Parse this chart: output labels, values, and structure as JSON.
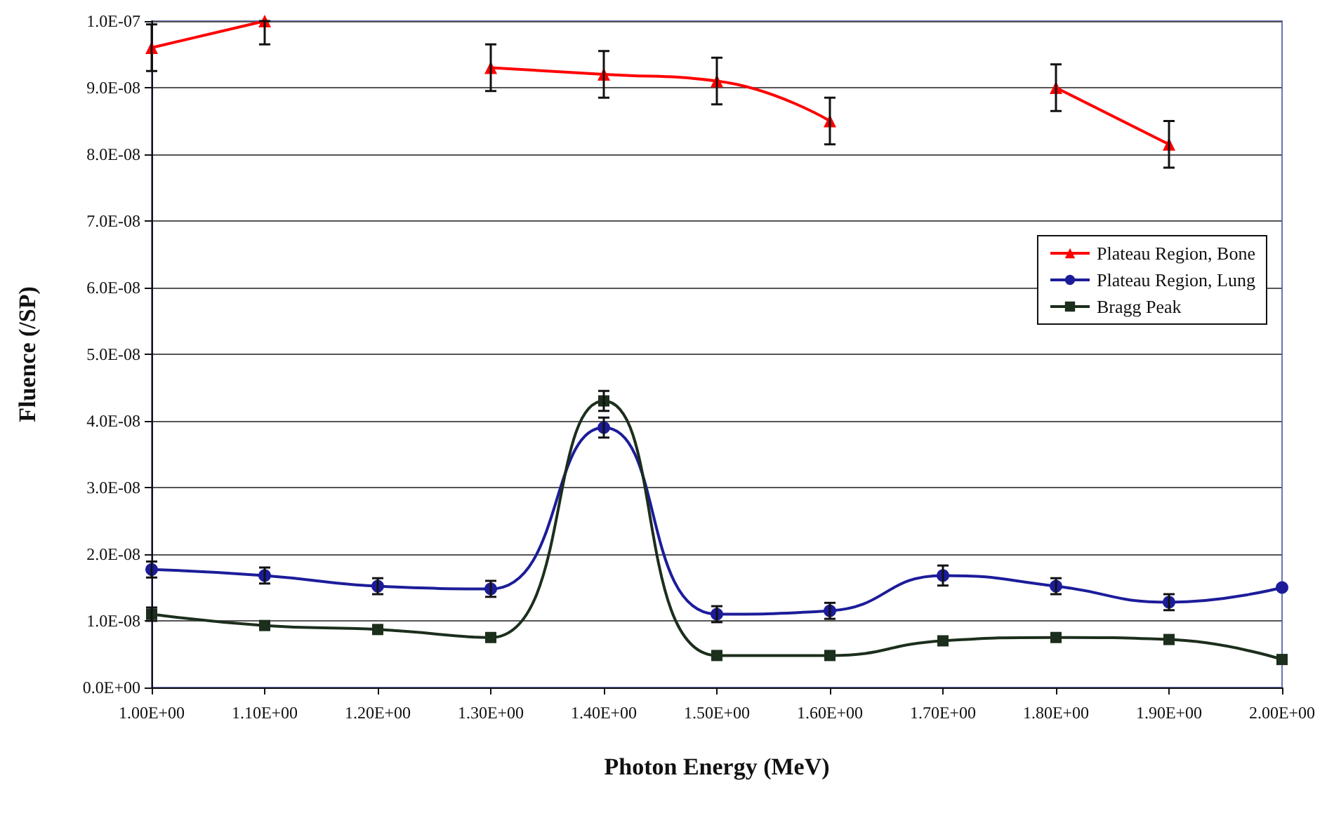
{
  "chart_data": {
    "type": "line",
    "xlabel": "Photon Energy (MeV)",
    "ylabel": "Fluence (/SP)",
    "x": [
      1.0,
      1.1,
      1.2,
      1.3,
      1.4,
      1.5,
      1.6,
      1.7,
      1.8,
      1.9,
      2.0
    ],
    "xlim": [
      1.0,
      2.0
    ],
    "xticks": [
      {
        "value": 1.0,
        "label": "1.00E+00"
      },
      {
        "value": 1.1,
        "label": "1.10E+00"
      },
      {
        "value": 1.2,
        "label": "1.20E+00"
      },
      {
        "value": 1.3,
        "label": "1.30E+00"
      },
      {
        "value": 1.4,
        "label": "1.40E+00"
      },
      {
        "value": 1.5,
        "label": "1.50E+00"
      },
      {
        "value": 1.6,
        "label": "1.60E+00"
      },
      {
        "value": 1.7,
        "label": "1.70E+00"
      },
      {
        "value": 1.8,
        "label": "1.80E+00"
      },
      {
        "value": 1.9,
        "label": "1.90E+00"
      },
      {
        "value": 2.0,
        "label": "2.00E+00"
      }
    ],
    "ylim": [
      0,
      1e-07
    ],
    "yticks": [
      {
        "value": 0,
        "label": "0.0E+00"
      },
      {
        "value": 1e-08,
        "label": "1.0E-08"
      },
      {
        "value": 2e-08,
        "label": "2.0E-08"
      },
      {
        "value": 3e-08,
        "label": "3.0E-08"
      },
      {
        "value": 4e-08,
        "label": "4.0E-08"
      },
      {
        "value": 5e-08,
        "label": "5.0E-08"
      },
      {
        "value": 6e-08,
        "label": "6.0E-08"
      },
      {
        "value": 7e-08,
        "label": "7.0E-08"
      },
      {
        "value": 8e-08,
        "label": "8.0E-08"
      },
      {
        "value": 9e-08,
        "label": "9.0E-08"
      },
      {
        "value": 1e-07,
        "label": "1.0E-07"
      }
    ],
    "grid": "y",
    "legend": "right",
    "series": [
      {
        "name": "Plateau Region, Bone",
        "color": "#ff0000",
        "marker": "triangle",
        "values": [
          9.6e-08,
          1e-07,
          null,
          9.3e-08,
          9.2e-08,
          9.1e-08,
          8.5e-08,
          null,
          9e-08,
          8.15e-08,
          null
        ],
        "errors": [
          3.5e-09,
          [
            9.65e-08,
            1e-07
          ],
          null,
          3.5e-09,
          3.5e-09,
          3.5e-09,
          3.5e-09,
          null,
          3.5e-09,
          3.5e-09,
          null
        ]
      },
      {
        "name": "Plateau Region, Lung",
        "color": "#1c1c9a",
        "marker": "circle",
        "values": [
          1.77e-08,
          1.68e-08,
          1.52e-08,
          1.48e-08,
          3.9e-08,
          1.1e-08,
          1.15e-08,
          1.68e-08,
          1.52e-08,
          1.28e-08,
          1.5e-08
        ],
        "errors": [
          1.2e-09,
          1.2e-09,
          1.2e-09,
          1.2e-09,
          1.5e-09,
          1.2e-09,
          1.2e-09,
          1.5e-09,
          1.2e-09,
          1.2e-09,
          null
        ]
      },
      {
        "name": "Bragg Peak",
        "color": "#1c2e1c",
        "marker": "square",
        "values": [
          1.1e-08,
          9.3e-09,
          8.7e-09,
          7.5e-09,
          4.3e-08,
          4.8e-09,
          4.8e-09,
          7e-09,
          7.5e-09,
          7.2e-09,
          4.2e-09
        ],
        "errors": [
          1e-09,
          null,
          null,
          null,
          1.5e-09,
          null,
          null,
          null,
          null,
          null,
          null
        ]
      }
    ]
  }
}
